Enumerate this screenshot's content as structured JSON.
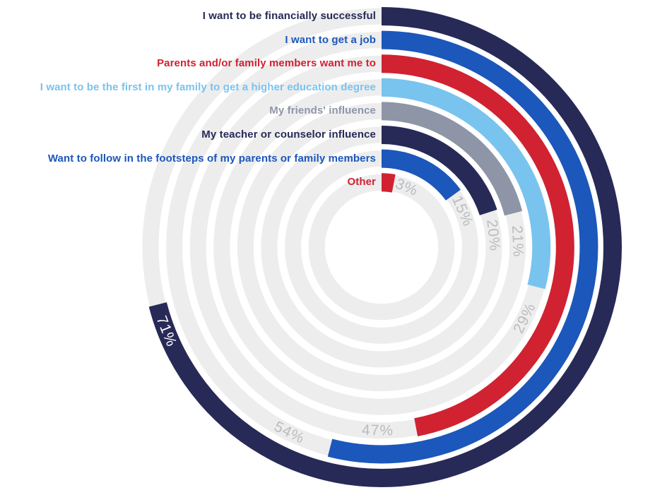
{
  "background_color": "#ffffff",
  "chart_data": {
    "type": "radial-bar",
    "title": "",
    "unit": "%",
    "direction": "clockwise",
    "start_angle_deg": 0,
    "rings_order": "outermost-to-innermost",
    "legend_position": "left-aligned-at-ring-start",
    "categories": [
      "I want to be financially successful",
      "I want to get a job",
      "Parents and/or family members want me to",
      "I want to be the first in my family to get a higher education degree",
      "My friends' influence",
      "My teacher or counselor influence",
      "Want to follow in the footsteps of my parents or family members",
      "Other"
    ],
    "values": [
      71,
      54,
      47,
      29,
      21,
      20,
      15,
      3
    ],
    "value_labels": [
      "71%",
      "54%",
      "47%",
      "29%",
      "21%",
      "20%",
      "15%",
      "3%"
    ],
    "colors": [
      "#272a56",
      "#1c57bb",
      "#d02231",
      "#79c3ef",
      "#8d95a6",
      "#272a56",
      "#1c57bb",
      "#d02231"
    ],
    "track_color": "#ededee",
    "value_label_color": "#b9bcbe",
    "value_label_on_arc_index": 0,
    "value_label_on_arc_color": "#ffffff"
  }
}
